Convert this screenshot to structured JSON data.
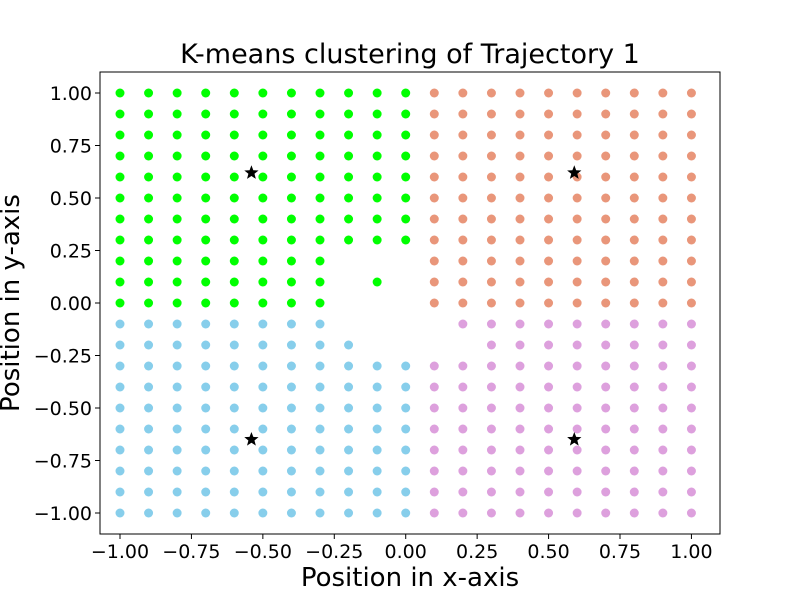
{
  "chart_data": {
    "type": "scatter",
    "title": "K-means clustering of Trajectory 1",
    "xlabel": "Position in x-axis",
    "ylabel": "Position in y-axis",
    "xlim": [
      -1.07,
      1.1
    ],
    "ylim": [
      -1.1,
      1.1
    ],
    "x_ticks": [
      -1.0,
      -0.75,
      -0.5,
      -0.25,
      0.0,
      0.25,
      0.5,
      0.75,
      1.0
    ],
    "x_tick_labels": [
      "−1.00",
      "−0.75",
      "−0.50",
      "−0.25",
      "0.00",
      "0.25",
      "0.50",
      "0.75",
      "1.00"
    ],
    "y_ticks": [
      1.0,
      0.75,
      0.5,
      0.25,
      0.0,
      -0.25,
      -0.5,
      -0.75,
      -1.0
    ],
    "y_tick_labels": [
      "1.00",
      "0.75",
      "0.50",
      "0.25",
      "0.00",
      "−0.25",
      "−0.50",
      "−0.75",
      "−1.00"
    ],
    "grid": false,
    "grid_points": {
      "x_values": [
        -1.0,
        -0.9,
        -0.8,
        -0.7,
        -0.6,
        -0.5,
        -0.4,
        -0.3,
        -0.2,
        -0.1,
        0.0,
        0.1,
        0.2,
        0.3,
        0.4,
        0.5,
        0.6,
        0.7,
        0.8,
        0.9,
        1.0
      ],
      "y_values": [
        1.0,
        0.9,
        0.8,
        0.7,
        0.6,
        0.5,
        0.4,
        0.3,
        0.2,
        0.1,
        0.0,
        -0.1,
        -0.2,
        -0.3,
        -0.4,
        -0.5,
        -0.6,
        -0.7,
        -0.8,
        -0.9,
        -1.0
      ],
      "empty_region_note": "",
      "missing_points": [
        [
          -0.2,
          0.2
        ],
        [
          -0.1,
          0.2
        ],
        [
          0.0,
          0.2
        ],
        [
          -0.2,
          0.1
        ],
        [
          0.0,
          0.1
        ],
        [
          -0.2,
          0.0
        ],
        [
          -0.1,
          0.0
        ],
        [
          0.0,
          0.0
        ],
        [
          -0.2,
          -0.1
        ],
        [
          -0.1,
          -0.1
        ],
        [
          0.0,
          -0.1
        ],
        [
          0.1,
          -0.1
        ],
        [
          -0.1,
          -0.2
        ],
        [
          0.0,
          -0.2
        ],
        [
          0.1,
          -0.2
        ],
        [
          0.2,
          -0.2
        ]
      ]
    },
    "series": [
      {
        "color": "#00ff00",
        "quadrant": "top-left"
      },
      {
        "color": "#e9967a",
        "quadrant": "top-right"
      },
      {
        "color": "#87ceeb",
        "quadrant": "bottom-left"
      },
      {
        "color": "#dda0dd",
        "quadrant": "bottom-right"
      }
    ],
    "centroids": [
      {
        "x": -0.54,
        "y": 0.62
      },
      {
        "x": 0.59,
        "y": 0.62
      },
      {
        "x": -0.54,
        "y": -0.65
      },
      {
        "x": 0.59,
        "y": -0.65
      }
    ],
    "centroid_color": "#000000",
    "centroid_marker": "star"
  }
}
